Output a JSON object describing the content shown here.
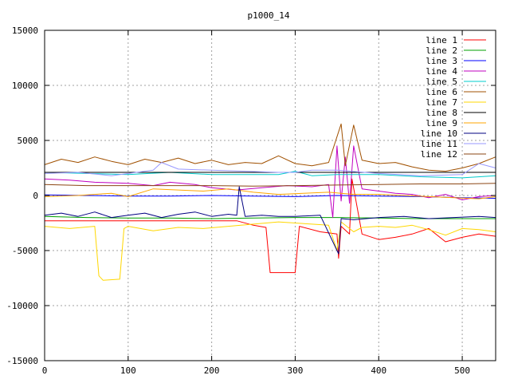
{
  "chart_data": {
    "type": "line",
    "title": "p1000_14",
    "xlabel": "",
    "ylabel": "",
    "xlim": [
      0,
      540
    ],
    "ylim": [
      -15000,
      15000
    ],
    "x_ticks": [
      0,
      100,
      200,
      300,
      400,
      500
    ],
    "y_ticks": [
      -15000,
      -10000,
      -5000,
      0,
      5000,
      10000,
      15000
    ],
    "grid": true,
    "legend_position": "top-right",
    "series": [
      {
        "name": "line 1",
        "color": "#ff0000",
        "x": [
          0,
          50,
          100,
          150,
          200,
          230,
          250,
          265,
          270,
          300,
          305,
          330,
          350,
          352,
          355,
          365,
          368,
          380,
          400,
          420,
          440,
          460,
          480,
          500,
          520,
          540
        ],
        "y": [
          -2300,
          -2300,
          -2300,
          -2300,
          -2300,
          -2300,
          -2700,
          -2900,
          -7000,
          -7000,
          -2800,
          -3300,
          -3500,
          -5700,
          -2800,
          -3500,
          1500,
          -3500,
          -4000,
          -3800,
          -3500,
          -3000,
          -4200,
          -3800,
          -3500,
          -3700
        ]
      },
      {
        "name": "line 2",
        "color": "#00a000",
        "x": [
          0,
          50,
          100,
          150,
          200,
          250,
          300,
          350,
          400,
          450,
          500,
          540
        ],
        "y": [
          -1900,
          -2000,
          -2050,
          -2050,
          -2100,
          -2050,
          -2000,
          -2000,
          -2050,
          -2100,
          -2100,
          -2100
        ]
      },
      {
        "name": "line 3",
        "color": "#0000ff",
        "x": [
          0,
          50,
          100,
          150,
          200,
          250,
          300,
          350,
          400,
          450,
          500,
          540
        ],
        "y": [
          50,
          0,
          -50,
          -50,
          0,
          -50,
          -100,
          0,
          -50,
          -100,
          -200,
          -250
        ]
      },
      {
        "name": "line 4",
        "color": "#c000c0",
        "x": [
          0,
          30,
          60,
          100,
          130,
          150,
          180,
          200,
          230,
          260,
          290,
          320,
          340,
          345,
          350,
          355,
          360,
          365,
          370,
          380,
          400,
          420,
          440,
          460,
          480,
          500,
          520,
          540
        ],
        "y": [
          1500,
          1400,
          1200,
          1100,
          900,
          1200,
          1000,
          700,
          500,
          700,
          900,
          800,
          1000,
          -2000,
          4500,
          -500,
          3500,
          -700,
          4500,
          600,
          400,
          200,
          100,
          -200,
          100,
          -400,
          -100,
          0
        ]
      },
      {
        "name": "line 5",
        "color": "#00cccc",
        "x": [
          0,
          50,
          100,
          150,
          200,
          250,
          280,
          300,
          320,
          350,
          400,
          450,
          500,
          540
        ],
        "y": [
          2100,
          2000,
          1900,
          2100,
          1900,
          1900,
          1900,
          2200,
          1800,
          1900,
          1900,
          1700,
          1600,
          1800
        ]
      },
      {
        "name": "line 6",
        "color": "#a05000",
        "x": [
          0,
          20,
          40,
          60,
          80,
          100,
          120,
          140,
          160,
          180,
          200,
          220,
          240,
          260,
          280,
          300,
          320,
          340,
          355,
          360,
          370,
          380,
          400,
          420,
          440,
          460,
          480,
          500,
          520,
          540
        ],
        "y": [
          2800,
          3300,
          3000,
          3500,
          3100,
          2800,
          3300,
          3000,
          3400,
          2900,
          3200,
          2800,
          3000,
          2900,
          3600,
          2900,
          2700,
          3000,
          6500,
          2700,
          6400,
          3200,
          2900,
          3000,
          2600,
          2300,
          2200,
          2500,
          2900,
          3500
        ]
      },
      {
        "name": "line 7",
        "color": "#ffd700",
        "x": [
          0,
          30,
          60,
          65,
          70,
          90,
          95,
          100,
          130,
          160,
          190,
          220,
          250,
          280,
          300,
          320,
          340,
          350,
          355,
          370,
          380,
          400,
          420,
          440,
          460,
          480,
          500,
          520,
          540
        ],
        "y": [
          -2800,
          -3000,
          -2800,
          -7300,
          -7700,
          -7600,
          -3000,
          -2800,
          -3200,
          -2900,
          -3000,
          -2800,
          -2600,
          -2400,
          -2500,
          -2600,
          -2700,
          -5000,
          -2400,
          -3300,
          -2900,
          -2800,
          -2900,
          -2700,
          -3100,
          -3600,
          -3000,
          -3100,
          -3300
        ]
      },
      {
        "name": "line 8",
        "color": "#000000",
        "x": [
          0,
          100,
          200,
          300,
          400,
          540
        ],
        "y": [
          2100,
          2100,
          2100,
          2100,
          2100,
          2100
        ]
      },
      {
        "name": "line 9",
        "color": "#ffa500",
        "x": [
          0,
          40,
          80,
          100,
          130,
          160,
          190,
          220,
          250,
          280,
          310,
          340,
          370,
          400,
          430,
          460,
          490,
          520,
          540
        ],
        "y": [
          -100,
          0,
          200,
          -100,
          600,
          500,
          400,
          600,
          300,
          100,
          200,
          300,
          100,
          100,
          0,
          -100,
          -200,
          -300,
          -100
        ]
      },
      {
        "name": "line 10",
        "color": "#000080",
        "x": [
          0,
          20,
          40,
          60,
          80,
          100,
          120,
          140,
          160,
          180,
          200,
          220,
          230,
          233,
          240,
          260,
          280,
          300,
          330,
          352,
          355,
          370,
          400,
          430,
          460,
          490,
          520,
          540
        ],
        "y": [
          -1800,
          -1600,
          -1900,
          -1500,
          -2000,
          -1800,
          -1600,
          -2000,
          -1700,
          -1500,
          -1900,
          -1700,
          -1800,
          800,
          -1900,
          -1800,
          -1900,
          -1900,
          -1800,
          -5300,
          -2100,
          -2200,
          -2000,
          -1900,
          -2100,
          -2000,
          -1900,
          -2000
        ]
      },
      {
        "name": "line 11",
        "color": "#9999ff",
        "x": [
          0,
          40,
          80,
          100,
          130,
          140,
          160,
          200,
          240,
          280,
          300,
          320,
          350,
          400,
          450,
          500,
          520,
          540
        ],
        "y": [
          2000,
          2100,
          1800,
          2000,
          2300,
          3000,
          2400,
          2300,
          2200,
          2100,
          2100,
          2300,
          2300,
          2000,
          1800,
          1900,
          2900,
          2500
        ]
      },
      {
        "name": "line 12",
        "color": "#8b4513",
        "x": [
          0,
          50,
          100,
          150,
          200,
          250,
          300,
          350,
          400,
          450,
          500,
          540
        ],
        "y": [
          1000,
          900,
          900,
          900,
          900,
          850,
          900,
          950,
          1000,
          1050,
          1050,
          1100
        ]
      }
    ]
  }
}
